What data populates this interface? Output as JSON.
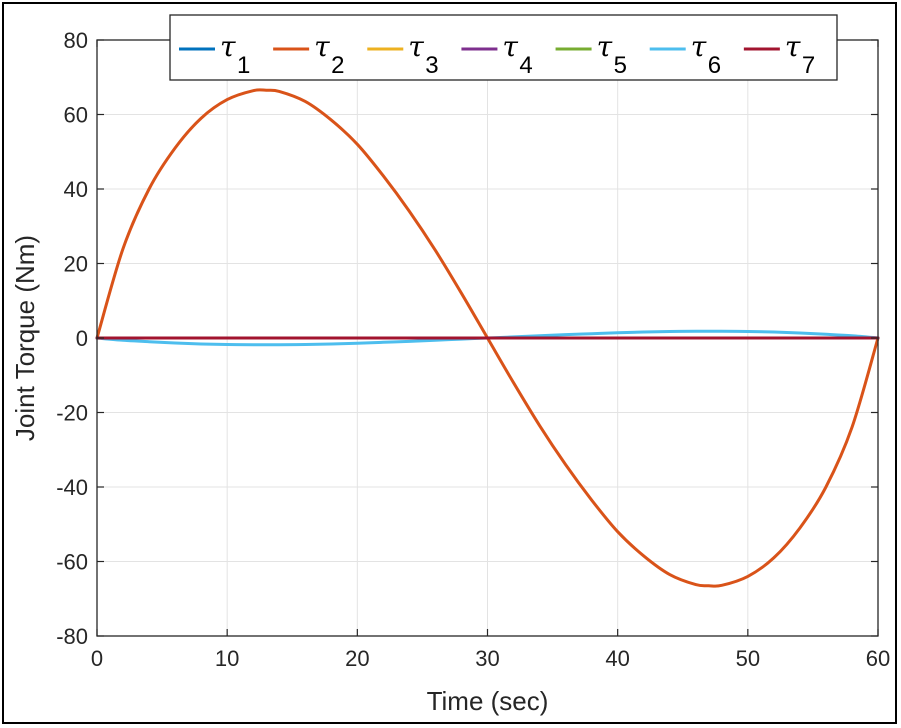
{
  "chart_data": {
    "type": "line",
    "title": "",
    "xlabel": "Time (sec)",
    "ylabel": "Joint Torque (Nm)",
    "xlim": [
      0,
      60
    ],
    "ylim": [
      -80,
      80
    ],
    "xticks": [
      0,
      10,
      20,
      30,
      40,
      50,
      60
    ],
    "yticks": [
      -80,
      -60,
      -40,
      -20,
      0,
      20,
      40,
      60,
      80
    ],
    "xtick_labels": [
      "0",
      "10",
      "20",
      "30",
      "40",
      "50",
      "60"
    ],
    "ytick_labels": [
      "-80",
      "-60",
      "-40",
      "-20",
      "0",
      "20",
      "40",
      "60",
      "80"
    ],
    "grid": true,
    "legend_position": "top (horizontal, inside)",
    "x": [
      0,
      2,
      4,
      6,
      8,
      10,
      12,
      13,
      14,
      16,
      18,
      20,
      22,
      24,
      26,
      28,
      30,
      32,
      34,
      36,
      38,
      40,
      42,
      44,
      46,
      47,
      48,
      50,
      52,
      54,
      56,
      58,
      60
    ],
    "series": [
      {
        "name": "τ1",
        "color": "#0072BD",
        "values": [
          0,
          0,
          0,
          0,
          0,
          0,
          0,
          0,
          0,
          0,
          0,
          0,
          0,
          0,
          0,
          0,
          0,
          0,
          0,
          0,
          0,
          0,
          0,
          0,
          0,
          0,
          0,
          0,
          0,
          0,
          0,
          0,
          0
        ]
      },
      {
        "name": "τ2",
        "color": "#D95319",
        "values": [
          0,
          24,
          40,
          51,
          59,
          64,
          66.4,
          66.5,
          66.2,
          63.5,
          58.5,
          52,
          43.5,
          34,
          23.5,
          12,
          0,
          -12,
          -23.5,
          -34,
          -43.5,
          -52,
          -58.5,
          -63.5,
          -66.2,
          -66.5,
          -66.4,
          -64,
          -59,
          -51,
          -40,
          -24,
          0
        ]
      },
      {
        "name": "τ3",
        "color": "#EDB120",
        "values": [
          0,
          0,
          0,
          0,
          0,
          0,
          0,
          0,
          0,
          0,
          0,
          0,
          0,
          0,
          0,
          0,
          0,
          0,
          0,
          0,
          0,
          0,
          0,
          0,
          0,
          0,
          0,
          0,
          0,
          0,
          0,
          0,
          0
        ]
      },
      {
        "name": "τ4",
        "color": "#7E2F8E",
        "values": [
          0,
          0,
          0,
          0,
          0,
          0,
          0,
          0,
          0,
          0,
          0,
          0,
          0,
          0,
          0,
          0,
          0,
          0,
          0,
          0,
          0,
          0,
          0,
          0,
          0,
          0,
          0,
          0,
          0,
          0,
          0,
          0,
          0
        ]
      },
      {
        "name": "τ5",
        "color": "#77AC30",
        "values": [
          0,
          0,
          0,
          0,
          0,
          0,
          0,
          0,
          0,
          0,
          0,
          0,
          0,
          0,
          0,
          0,
          0,
          0,
          0,
          0,
          0,
          0,
          0,
          0,
          0,
          0,
          0,
          0,
          0,
          0,
          0,
          0,
          0
        ]
      },
      {
        "name": "τ6",
        "color": "#4DBEEE",
        "values": [
          0,
          -0.6,
          -1.0,
          -1.35,
          -1.6,
          -1.75,
          -1.8,
          -1.8,
          -1.8,
          -1.75,
          -1.6,
          -1.4,
          -1.15,
          -0.9,
          -0.6,
          -0.3,
          0,
          0.3,
          0.6,
          0.9,
          1.15,
          1.4,
          1.6,
          1.75,
          1.8,
          1.8,
          1.8,
          1.75,
          1.6,
          1.35,
          1.0,
          0.6,
          0
        ]
      },
      {
        "name": "τ7",
        "color": "#A2142F",
        "values": [
          0,
          0,
          0,
          0,
          0,
          0,
          0,
          0,
          0,
          0,
          0,
          0,
          0,
          0,
          0,
          0,
          0,
          0,
          0,
          0,
          0,
          0,
          0,
          0,
          0,
          0,
          0,
          0,
          0,
          0,
          0,
          0,
          0
        ]
      }
    ]
  },
  "legend": {
    "items": [
      {
        "symbol": "τ",
        "sub": "1",
        "color": "#0072BD"
      },
      {
        "symbol": "τ",
        "sub": "2",
        "color": "#D95319"
      },
      {
        "symbol": "τ",
        "sub": "3",
        "color": "#EDB120"
      },
      {
        "symbol": "τ",
        "sub": "4",
        "color": "#7E2F8E"
      },
      {
        "symbol": "τ",
        "sub": "5",
        "color": "#77AC30"
      },
      {
        "symbol": "τ",
        "sub": "6",
        "color": "#4DBEEE"
      },
      {
        "symbol": "τ",
        "sub": "7",
        "color": "#A2142F"
      }
    ]
  }
}
